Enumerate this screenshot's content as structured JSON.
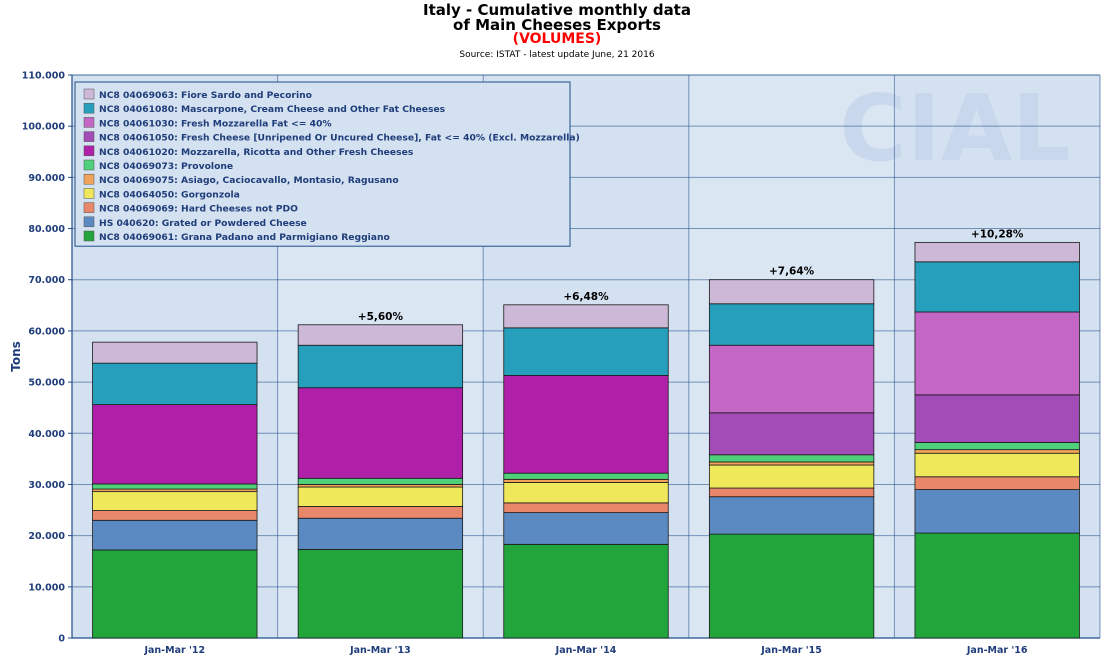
{
  "title_line1": "Italy - Cumulative monthly data",
  "title_line2": "of Main Cheeses Exports",
  "title_line3": "(VOLUMES)",
  "source": "Source: ISTAT - latest update June, 21 2016",
  "colors": {
    "plot_bg": "#d4e1f0",
    "grid": "#1f4e8c",
    "axis_text": "#1f3d7a"
  },
  "chart_data": {
    "type": "bar",
    "stacked": true,
    "ylabel": "Tons",
    "ylim": [
      0,
      110000
    ],
    "yticks": [
      "0",
      "10.000",
      "20.000",
      "30.000",
      "40.000",
      "50.000",
      "60.000",
      "70.000",
      "80.000",
      "90.000",
      "100.000",
      "110.000"
    ],
    "categories": [
      "Jan-Mar '12",
      "Jan-Mar '13",
      "Jan-Mar '14",
      "Jan-Mar '15",
      "Jan-Mar '16"
    ],
    "growth_labels": [
      "",
      "+5,60%",
      "+6,48%",
      "+7,64%",
      "+10,28%"
    ],
    "legend_position": "top-left",
    "series": [
      {
        "name": "NC8 04069061: Grana Padano and Parmigiano Reggiano",
        "color": "#22a63c",
        "values": [
          17200,
          17300,
          18300,
          20300,
          20500
        ]
      },
      {
        "name": "HS 040620: Grated or Powdered Cheese",
        "color": "#5b89c2",
        "values": [
          5800,
          6100,
          6200,
          7300,
          8500
        ]
      },
      {
        "name": "NC8 04069069: Hard Cheeses not PDO",
        "color": "#e9876a",
        "values": [
          1900,
          2300,
          1900,
          1700,
          2500
        ]
      },
      {
        "name": "NC8 04064050: Gorgonzola",
        "color": "#efe85a",
        "values": [
          3700,
          3800,
          4000,
          4500,
          4600
        ]
      },
      {
        "name": "NC8 04069075: Asiago, Caciocavallo, Montasio, Ragusano",
        "color": "#f2a35a",
        "values": [
          500,
          500,
          600,
          600,
          700
        ]
      },
      {
        "name": "NC8 04069073: Provolone",
        "color": "#4fd07a",
        "values": [
          1000,
          1200,
          1200,
          1400,
          1400
        ]
      },
      {
        "name": "NC8 04061020: Mozzarella, Ricotta and Other Fresh Cheeses",
        "color": "#b01fa8",
        "values": [
          15500,
          17700,
          19100,
          0,
          0
        ]
      },
      {
        "name": "NC8 04061050: Fresh Cheese [Unripened Or Uncured Cheese], Fat <= 40% (Excl. Mozzarella)",
        "color": "#a24cb8",
        "values": [
          0,
          0,
          0,
          8200,
          9300
        ]
      },
      {
        "name": "NC8 04061030: Fresh Mozzarella Fat <= 40%",
        "color": "#c466c6",
        "values": [
          0,
          0,
          0,
          13200,
          16200
        ]
      },
      {
        "name": "NC8 04061080: Mascarpone, Cream Cheese and Other Fat Cheeses",
        "color": "#259fbb",
        "values": [
          8100,
          8300,
          9300,
          8100,
          9800
        ]
      },
      {
        "name": "NC8 04069063: Fiore Sardo and Pecorino",
        "color": "#cdb8d8",
        "values": [
          4100,
          4000,
          4500,
          4700,
          3800
        ]
      }
    ]
  }
}
